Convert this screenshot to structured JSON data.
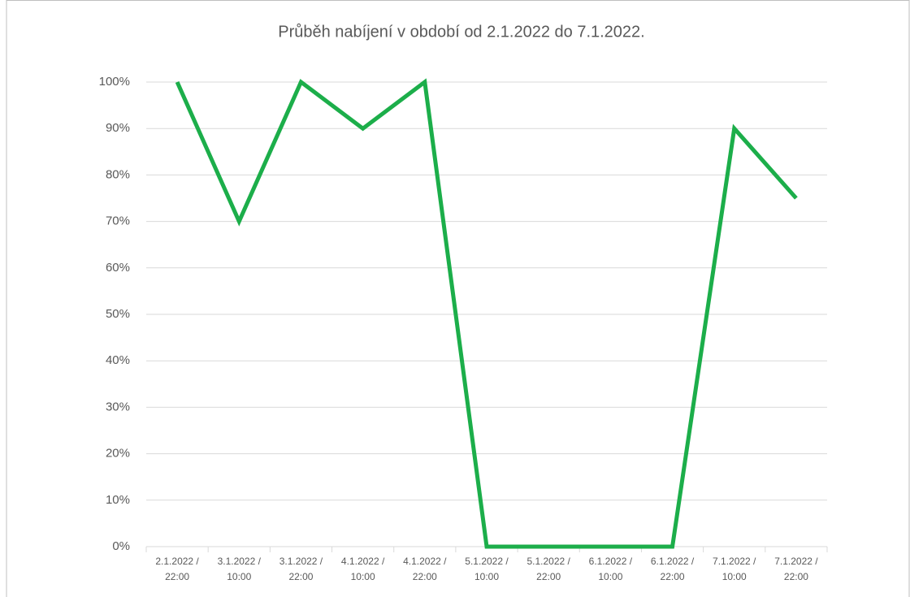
{
  "chart_data": {
    "type": "line",
    "title": "Průběh nabíjení v období od 2.1.2022 do 7.1.2022.",
    "categories": [
      "2.1.2022 / 22:00",
      "3.1.2022 / 10:00",
      "3.1.2022 / 22:00",
      "4.1.2022 / 10:00",
      "4.1.2022 / 22:00",
      "5.1.2022 / 10:00",
      "5.1.2022 / 22:00",
      "6.1.2022 / 10:00",
      "6.1.2022 / 22:00",
      "7.1.2022 / 10:00",
      "7.1.2022 / 22:00"
    ],
    "series": [
      {
        "color": "#1cae4a",
        "values": [
          100,
          70,
          100,
          90,
          100,
          0,
          0,
          0,
          0,
          90,
          75
        ]
      }
    ],
    "ylim": [
      0,
      100
    ],
    "yticks": [
      {
        "value": 0,
        "label": "0%"
      },
      {
        "value": 10,
        "label": "10%"
      },
      {
        "value": 20,
        "label": "20%"
      },
      {
        "value": 30,
        "label": "30%"
      },
      {
        "value": 40,
        "label": "40%"
      },
      {
        "value": 50,
        "label": "50%"
      },
      {
        "value": 60,
        "label": "60%"
      },
      {
        "value": 70,
        "label": "70%"
      },
      {
        "value": 80,
        "label": "80%"
      },
      {
        "value": 90,
        "label": "90%"
      },
      {
        "value": 100,
        "label": "100%"
      }
    ],
    "grid": true
  }
}
